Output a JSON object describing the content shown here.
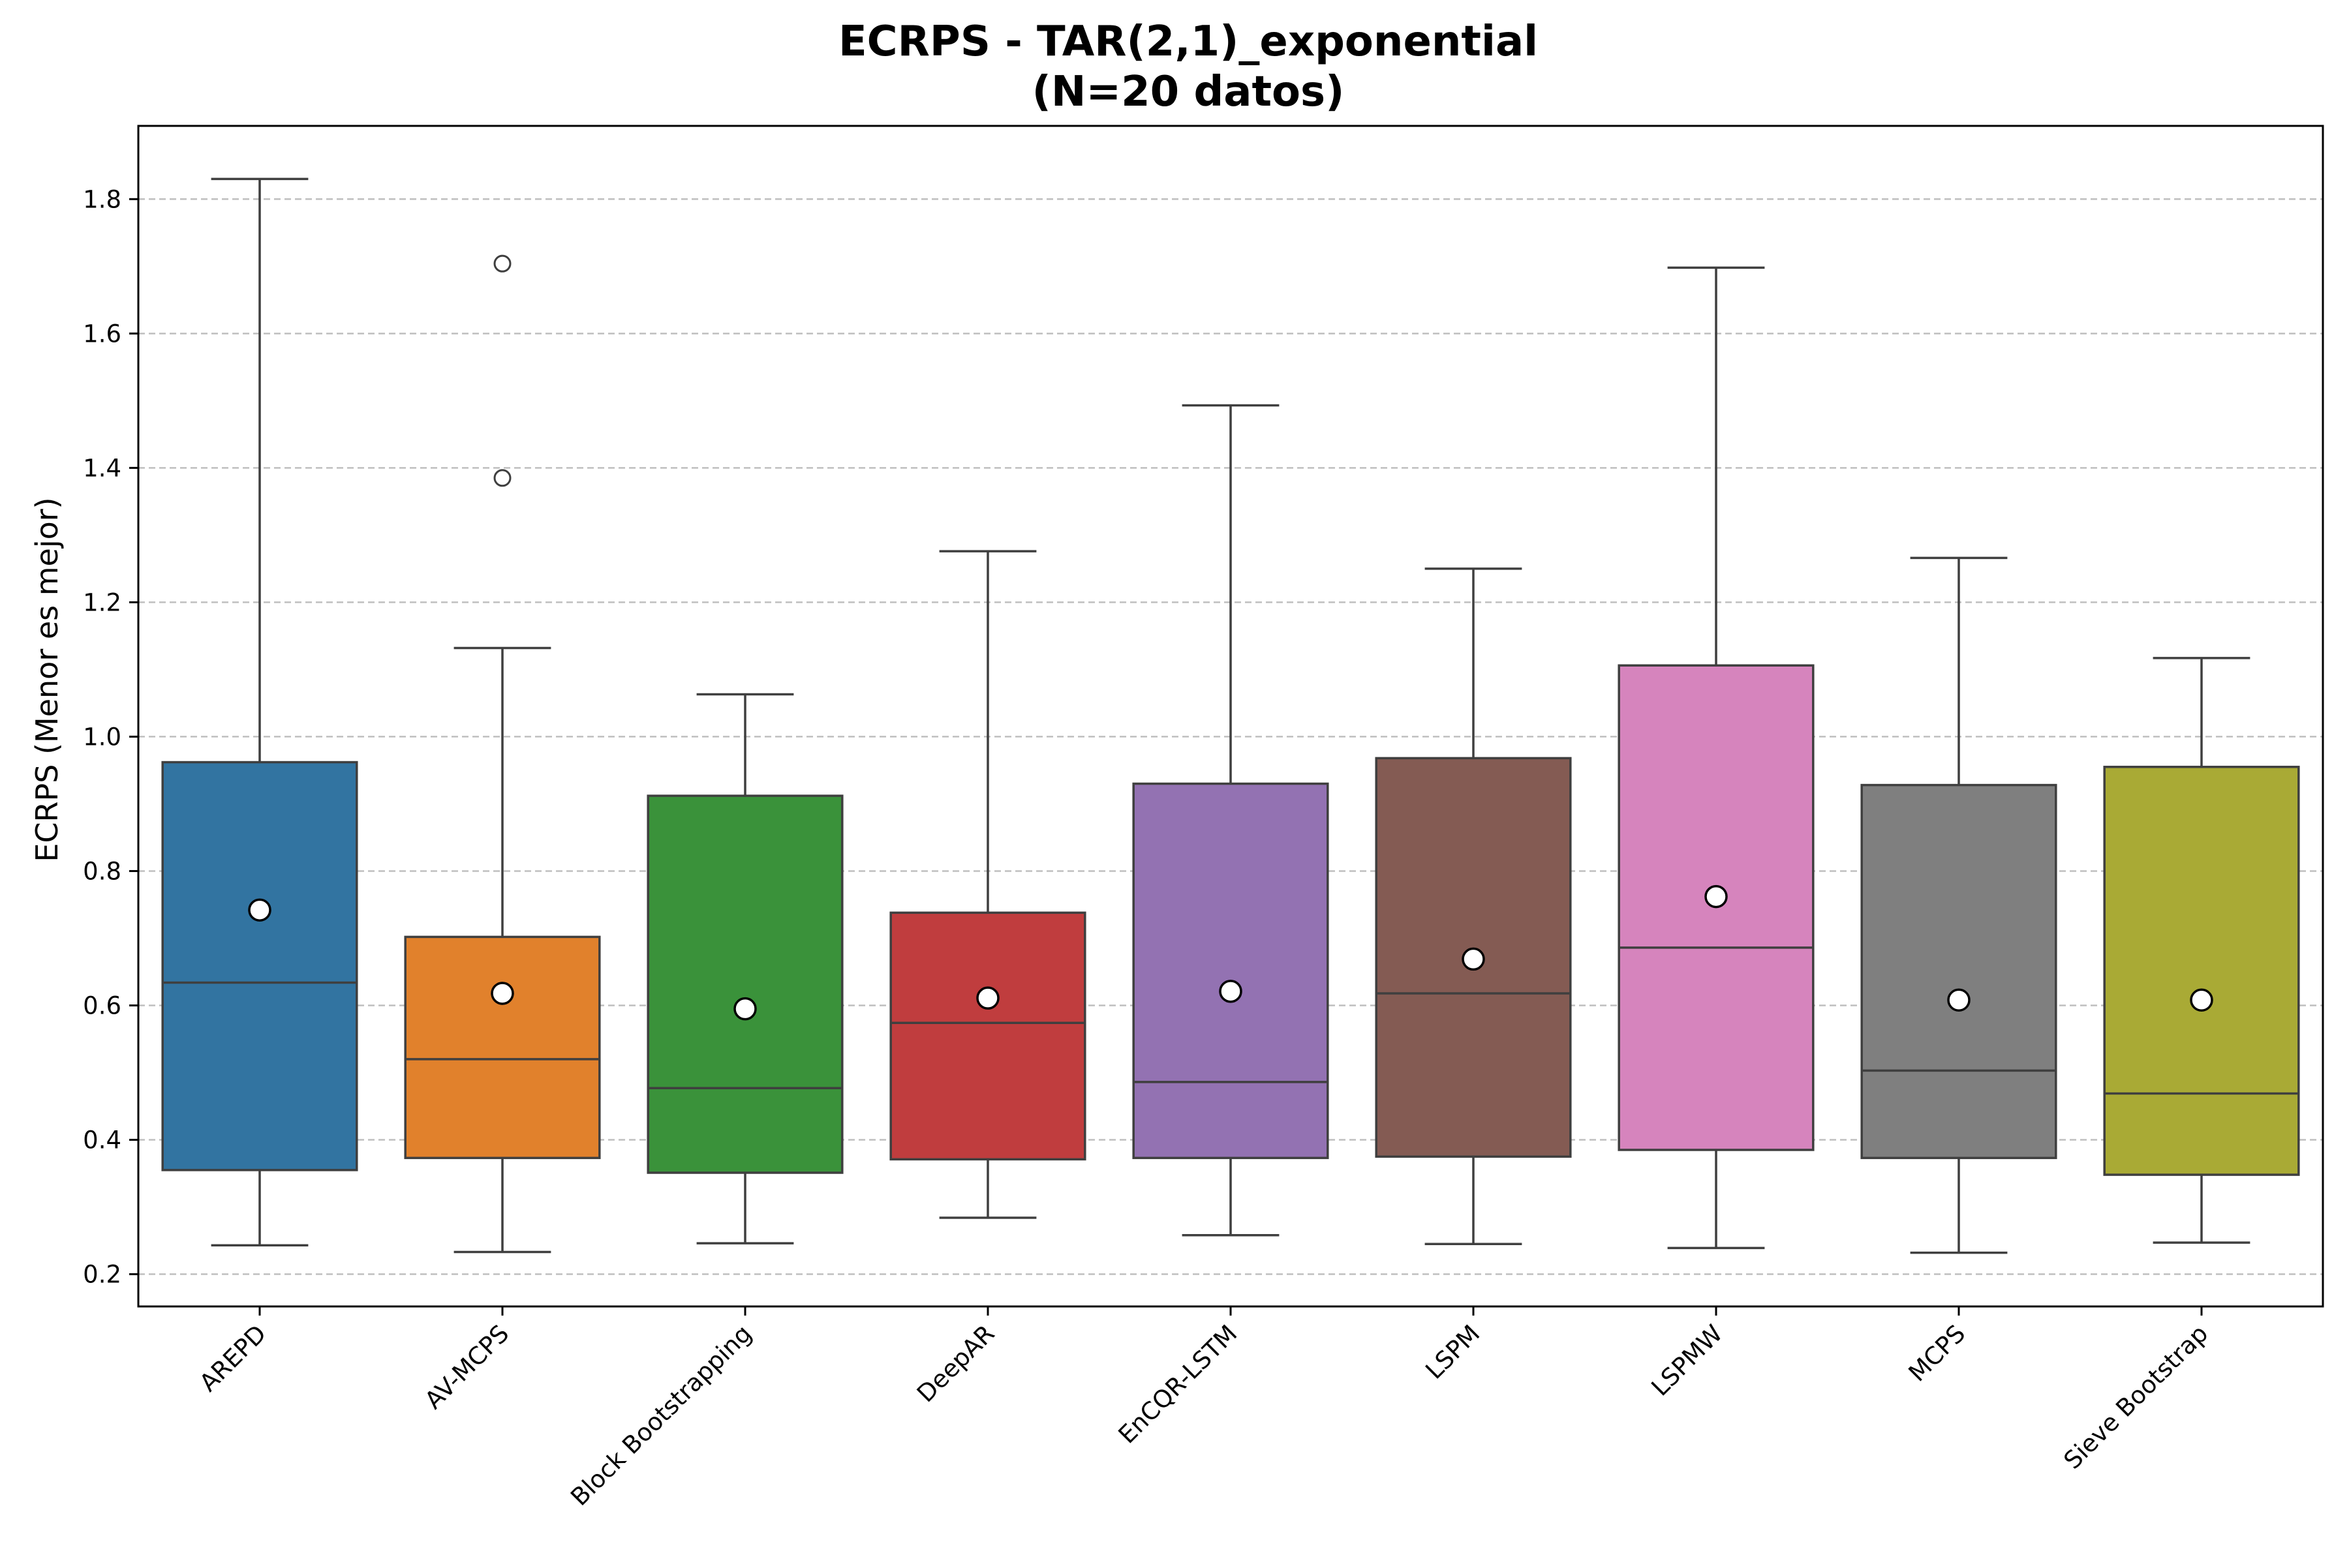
{
  "chart_data": {
    "type": "boxplot",
    "title": "ECRPS - TAR(2,1)_exponential",
    "subtitle": "(N=20 datos)",
    "xlabel": "",
    "ylabel": "ECRPS (Menor es mejor)",
    "ylim": [
      0.152,
      1.909
    ],
    "yticks": [
      0.2,
      0.4,
      0.6,
      0.8,
      1.0,
      1.2,
      1.4,
      1.6,
      1.8
    ],
    "ytick_labels": [
      "0.2",
      "0.4",
      "0.6",
      "0.8",
      "1.0",
      "1.2",
      "1.4",
      "1.6",
      "1.8"
    ],
    "grid": "y, dashed",
    "legend": "none",
    "categories": [
      "AREPD",
      "AV-MCPS",
      "Block Bootstrapping",
      "DeepAR",
      "EnCQR-LSTM",
      "LSPM",
      "LSPMW",
      "MCPS",
      "Sieve Bootstrap"
    ],
    "series": [
      {
        "category": "AREPD",
        "color": "#3274a1",
        "whisker_low": 0.243,
        "q1": 0.355,
        "median": 0.634,
        "q3": 0.962,
        "whisker_high": 1.83,
        "mean": 0.742,
        "outliers": []
      },
      {
        "category": "AV-MCPS",
        "color": "#e1812c",
        "whisker_low": 0.233,
        "q1": 0.373,
        "median": 0.52,
        "q3": 0.702,
        "whisker_high": 1.132,
        "mean": 0.618,
        "outliers": [
          1.385,
          1.704
        ]
      },
      {
        "category": "Block Bootstrapping",
        "color": "#3a923a",
        "whisker_low": 0.246,
        "q1": 0.351,
        "median": 0.477,
        "q3": 0.912,
        "whisker_high": 1.063,
        "mean": 0.595,
        "outliers": []
      },
      {
        "category": "DeepAR",
        "color": "#c03d3e",
        "whisker_low": 0.284,
        "q1": 0.371,
        "median": 0.574,
        "q3": 0.738,
        "whisker_high": 1.276,
        "mean": 0.611,
        "outliers": []
      },
      {
        "category": "EnCQR-LSTM",
        "color": "#9372b2",
        "whisker_low": 0.258,
        "q1": 0.373,
        "median": 0.486,
        "q3": 0.93,
        "whisker_high": 1.493,
        "mean": 0.621,
        "outliers": []
      },
      {
        "category": "LSPM",
        "color": "#845b53",
        "whisker_low": 0.245,
        "q1": 0.375,
        "median": 0.618,
        "q3": 0.968,
        "whisker_high": 1.25,
        "mean": 0.669,
        "outliers": []
      },
      {
        "category": "LSPMW",
        "color": "#d684bd",
        "whisker_low": 0.239,
        "q1": 0.385,
        "median": 0.686,
        "q3": 1.106,
        "whisker_high": 1.698,
        "mean": 0.762,
        "outliers": []
      },
      {
        "category": "MCPS",
        "color": "#7f7f7f",
        "whisker_low": 0.232,
        "q1": 0.373,
        "median": 0.503,
        "q3": 0.928,
        "whisker_high": 1.266,
        "mean": 0.608,
        "outliers": []
      },
      {
        "category": "Sieve Bootstrap",
        "color": "#a9aa35",
        "whisker_low": 0.247,
        "q1": 0.348,
        "median": 0.469,
        "q3": 0.955,
        "whisker_high": 1.117,
        "mean": 0.608,
        "outliers": []
      }
    ]
  }
}
